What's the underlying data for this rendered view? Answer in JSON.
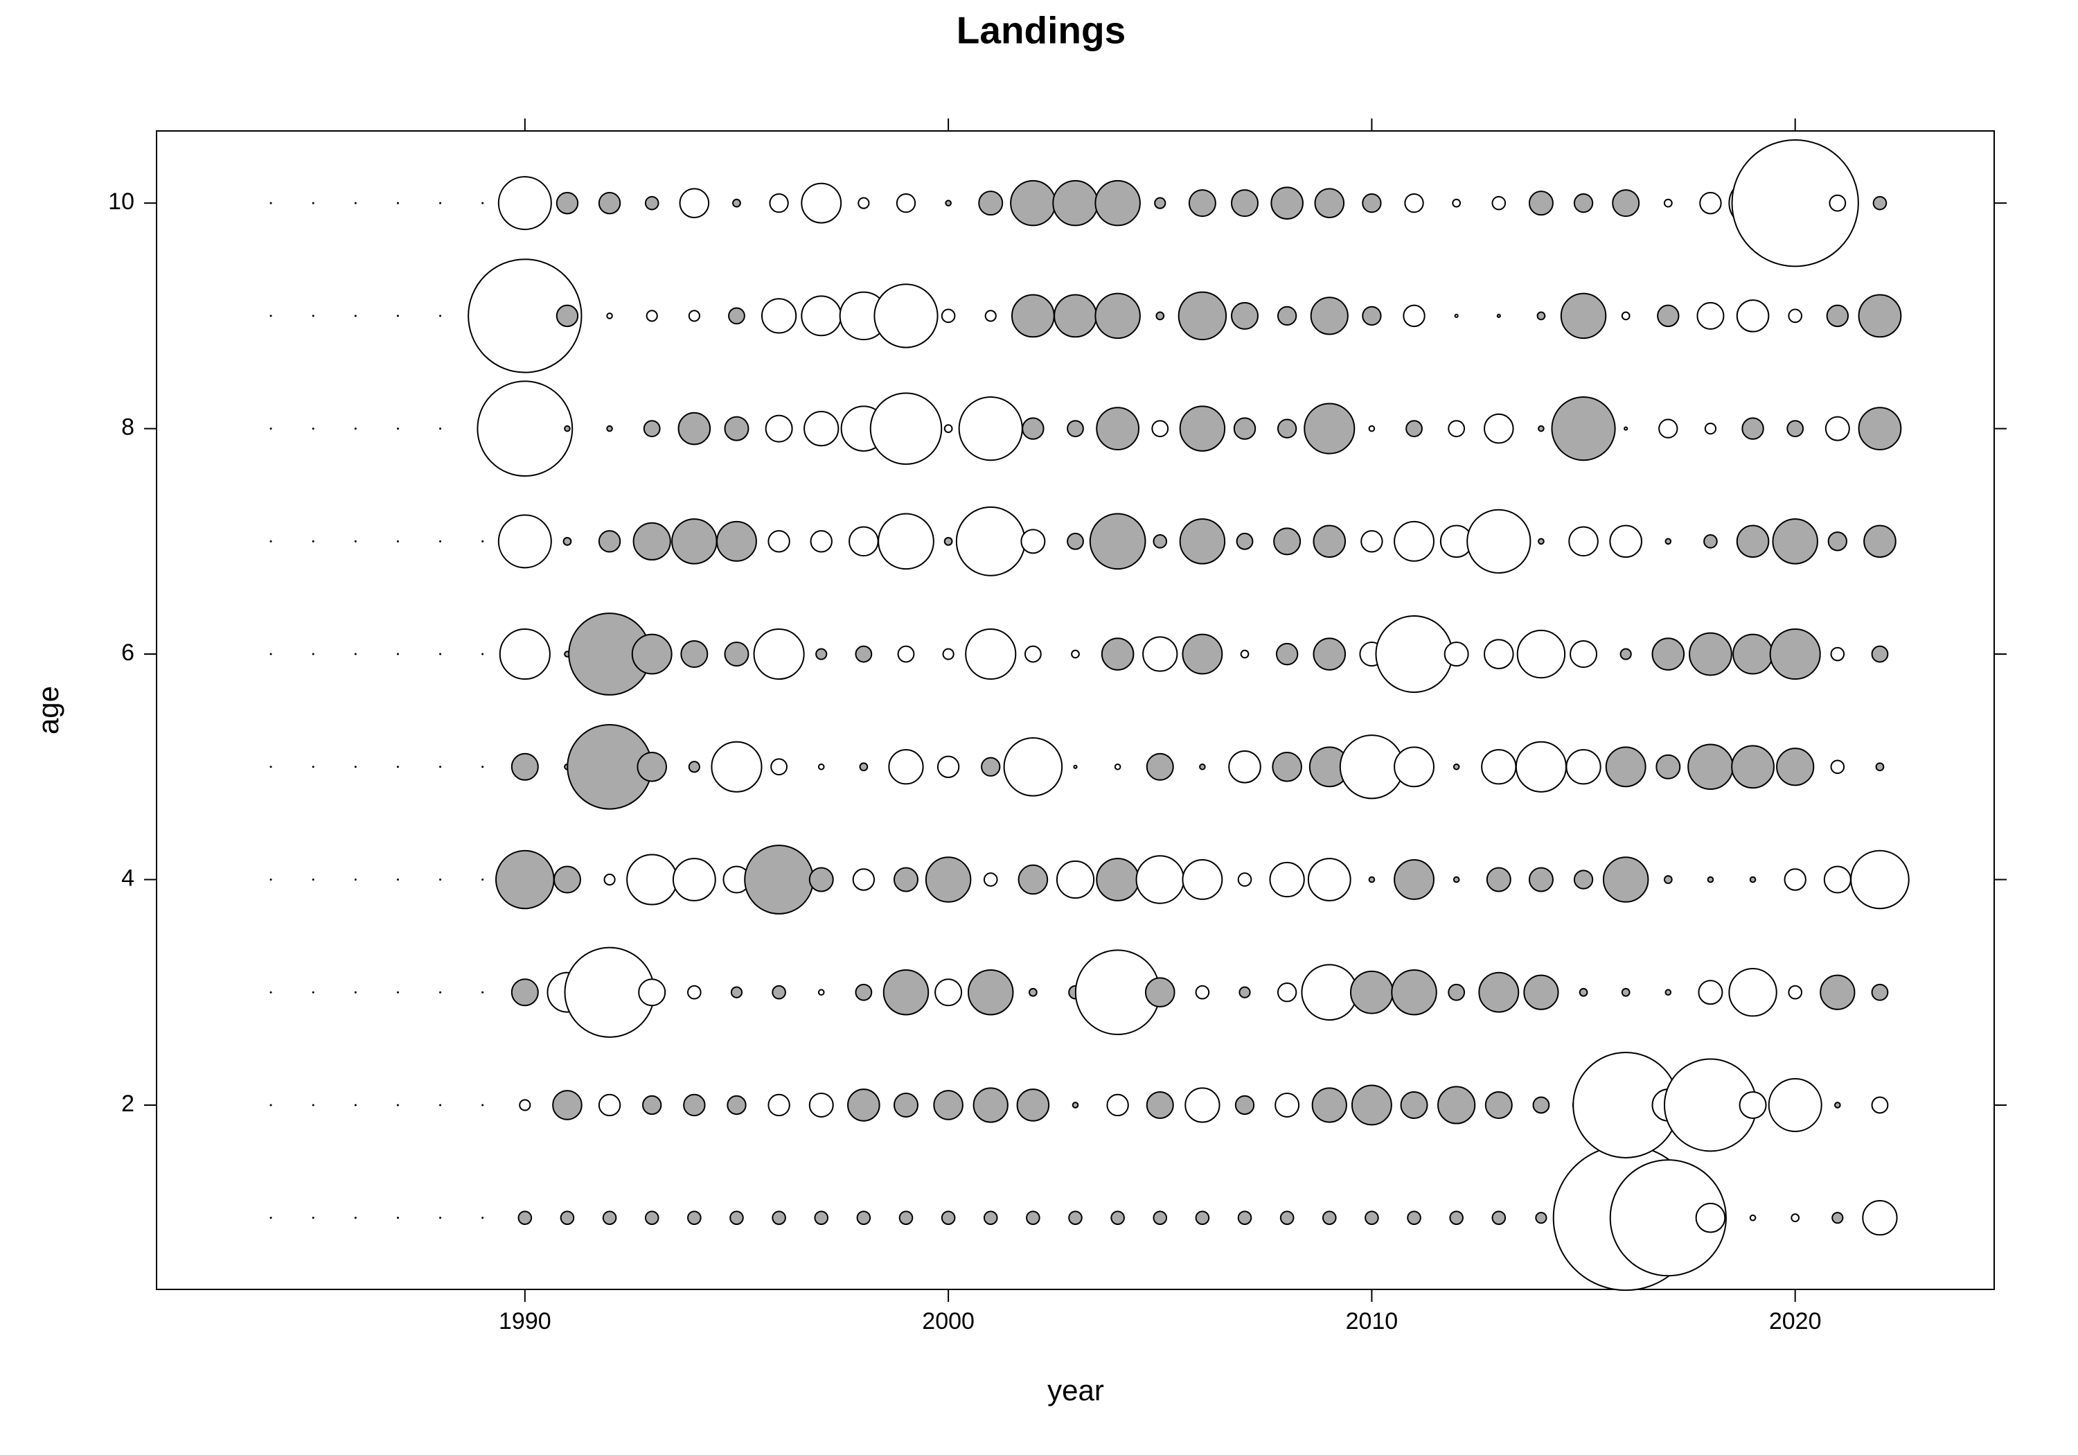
{
  "chart_data": {
    "type": "bubble",
    "title": "Landings",
    "xlabel": "year",
    "ylabel": "age",
    "x": [
      1984,
      1985,
      1986,
      1987,
      1988,
      1989,
      1990,
      1991,
      1992,
      1993,
      1994,
      1995,
      1996,
      1997,
      1998,
      1999,
      2000,
      2001,
      2002,
      2003,
      2004,
      2005,
      2006,
      2007,
      2008,
      2009,
      2010,
      2011,
      2012,
      2013,
      2014,
      2015,
      2016,
      2017,
      2018,
      2019,
      2020,
      2021,
      2022
    ],
    "y": [
      1,
      2,
      3,
      4,
      5,
      6,
      7,
      8,
      9,
      10
    ],
    "values": [
      [
        0,
        0,
        0,
        0,
        0,
        0,
        -0.06,
        -0.06,
        -0.06,
        -0.06,
        -0.06,
        -0.06,
        -0.06,
        -0.06,
        -0.06,
        -0.06,
        -0.06,
        -0.06,
        -0.06,
        -0.06,
        -0.06,
        -0.06,
        -0.06,
        -0.06,
        -0.06,
        -0.06,
        -0.06,
        -0.06,
        -0.06,
        -0.06,
        -0.04,
        -0.06,
        7.56,
        4.84,
        0.3,
        0.01,
        0.02,
        -0.04,
        0.42
      ],
      [
        0,
        0,
        0,
        0,
        0,
        0,
        0.04,
        -0.3,
        0.16,
        -0.12,
        -0.16,
        -0.12,
        0.16,
        0.2,
        -0.36,
        -0.2,
        -0.3,
        -0.42,
        -0.36,
        -0.01,
        0.16,
        -0.25,
        0.42,
        -0.12,
        0.2,
        -0.42,
        -0.56,
        -0.25,
        -0.49,
        -0.25,
        -0.09,
        0.16,
        4.0,
        0.36,
        3.06,
        0.25,
        1.0,
        -0.01,
        0.09
      ],
      [
        0,
        0,
        0,
        0,
        0,
        0,
        -0.25,
        0.56,
        2.89,
        0.25,
        0.06,
        -0.04,
        -0.06,
        0.01,
        -0.09,
        -0.72,
        0.25,
        -0.72,
        -0.02,
        -0.06,
        2.56,
        -0.3,
        0.06,
        -0.04,
        0.12,
        1.1,
        -0.64,
        -0.72,
        -0.09,
        -0.56,
        -0.42,
        -0.02,
        -0.02,
        -0.01,
        0.2,
        0.81,
        0.06,
        -0.42,
        -0.09
      ],
      [
        0,
        0,
        0,
        0,
        0,
        0,
        -1.21,
        -0.25,
        0.04,
        0.9,
        0.64,
        0.25,
        -1.69,
        -0.2,
        0.16,
        -0.2,
        -0.72,
        0.06,
        -0.3,
        0.49,
        -0.64,
        0.81,
        0.56,
        0.06,
        0.42,
        0.64,
        -0.01,
        -0.56,
        -0.01,
        -0.2,
        -0.2,
        -0.12,
        -0.72,
        -0.02,
        -0.01,
        -0.01,
        0.16,
        0.25,
        1.21
      ],
      [
        0,
        0,
        0,
        0,
        0,
        0,
        -0.25,
        -0.01,
        -2.56,
        -0.3,
        -0.04,
        0.9,
        0.09,
        0.01,
        -0.02,
        0.42,
        0.16,
        -0.12,
        1.21,
        0.003,
        0.01,
        -0.25,
        -0.01,
        0.36,
        -0.3,
        -0.56,
        1.44,
        0.56,
        -0.01,
        0.42,
        0.9,
        0.42,
        -0.56,
        -0.2,
        -0.72,
        -0.64,
        -0.49,
        0.06,
        -0.02
      ],
      [
        0,
        0,
        0,
        0,
        0,
        0,
        0.9,
        -0.01,
        -2.4,
        -0.56,
        -0.25,
        -0.2,
        0.9,
        -0.04,
        -0.09,
        0.09,
        0.04,
        0.9,
        0.09,
        0.02,
        -0.36,
        0.42,
        -0.56,
        0.02,
        -0.16,
        -0.36,
        0.2,
        2.1,
        0.2,
        0.3,
        0.81,
        0.25,
        -0.04,
        -0.36,
        -0.64,
        -0.56,
        -0.9,
        0.06,
        -0.09
      ],
      [
        0,
        0,
        0,
        0,
        0,
        0,
        1.0,
        -0.02,
        -0.16,
        -0.49,
        -0.72,
        -0.56,
        0.16,
        0.16,
        0.3,
        1.1,
        -0.02,
        1.69,
        0.2,
        -0.09,
        -1.1,
        -0.06,
        -0.72,
        -0.09,
        -0.25,
        -0.36,
        0.16,
        0.56,
        0.36,
        1.44,
        -0.01,
        0.3,
        0.36,
        -0.01,
        -0.06,
        -0.36,
        -0.72,
        -0.12,
        -0.36
      ],
      [
        0,
        0,
        0,
        0,
        0,
        0,
        3.24,
        -0.01,
        -0.01,
        -0.09,
        -0.36,
        -0.2,
        0.25,
        0.42,
        0.72,
        1.82,
        0.02,
        1.44,
        -0.16,
        -0.09,
        -0.64,
        0.09,
        -0.72,
        -0.16,
        -0.12,
        -0.9,
        0.01,
        -0.09,
        0.09,
        0.3,
        -0.01,
        -1.44,
        0.003,
        0.12,
        0.04,
        -0.16,
        -0.09,
        0.2,
        -0.64
      ],
      [
        0,
        0,
        0,
        0,
        0,
        0,
        4.62,
        -0.16,
        0.01,
        0.04,
        0.04,
        -0.09,
        0.42,
        0.56,
        0.81,
        1.44,
        0.06,
        0.04,
        -0.64,
        -0.64,
        -0.72,
        -0.02,
        -0.81,
        -0.25,
        -0.12,
        -0.49,
        -0.12,
        0.16,
        0.003,
        -0.003,
        -0.02,
        -0.72,
        0.02,
        -0.16,
        0.25,
        0.36,
        0.06,
        -0.16,
        -0.64
      ],
      [
        0,
        0,
        0,
        0,
        0,
        0,
        1.0,
        -0.16,
        -0.16,
        -0.06,
        0.3,
        -0.02,
        0.12,
        0.56,
        0.04,
        0.12,
        -0.01,
        -0.2,
        -0.72,
        -0.72,
        -0.72,
        -0.04,
        -0.25,
        -0.25,
        -0.36,
        -0.3,
        -0.12,
        0.12,
        0.02,
        0.06,
        -0.2,
        -0.12,
        -0.25,
        0.02,
        0.16,
        0.81,
        5.76,
        0.09,
        -0.06
      ]
    ],
    "colors": {
      "positive": "#ffffff",
      "negative": "#aaaaaa"
    },
    "xlim": [
      1981.3,
      2024.7
    ],
    "ylim": [
      0.365,
      10.64
    ],
    "xticks": [
      1990,
      2000,
      2010,
      2020
    ],
    "yticks": [
      2,
      4,
      6,
      8,
      10
    ]
  }
}
